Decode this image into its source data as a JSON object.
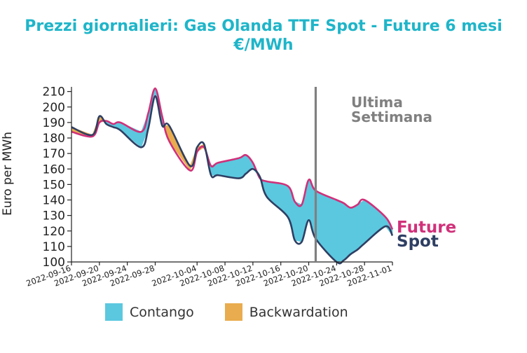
{
  "title_line1": "Prezzi giornalieri: Gas Olanda TTF Spot - Future 6 mesi",
  "title_line2": "€/MWh",
  "colors": {
    "title": "#1fb5c9",
    "contango": "#5bc8df",
    "backwardation": "#e9ac4e",
    "future": "#d0317a",
    "spot": "#2e3f63",
    "annotation": "#808080",
    "vline": "#808080"
  },
  "legend": {
    "contango": "Contango",
    "backwardation": "Backwardation"
  },
  "chart_data": {
    "type": "area",
    "xlabel": "",
    "ylabel": "Euro per MWh",
    "ylim": [
      100,
      213
    ],
    "yticks": [
      100,
      110,
      120,
      130,
      140,
      150,
      160,
      170,
      180,
      190,
      200,
      210
    ],
    "xlim": [
      "2022-09-16",
      "2022-11-01"
    ],
    "xticks": [
      "2022-09-16",
      "2022-09-20",
      "2022-09-24",
      "2022-09-28",
      "2022-10-04",
      "2022-10-08",
      "2022-10-12",
      "2022-10-16",
      "2022-10-20",
      "2022-10-24",
      "2022-10-28",
      "2022-11-01"
    ],
    "vline_date": "2022-10-21",
    "annotation": [
      "Ultima",
      "Settimana"
    ],
    "series": [
      {
        "name": "Future",
        "points": [
          [
            "2022-09-16",
            184
          ],
          [
            "2022-09-19",
            181
          ],
          [
            "2022-09-20",
            190
          ],
          [
            "2022-09-21",
            191
          ],
          [
            "2022-09-22",
            189
          ],
          [
            "2022-09-23",
            190
          ],
          [
            "2022-09-26",
            184
          ],
          [
            "2022-09-27",
            196
          ],
          [
            "2022-09-28",
            212
          ],
          [
            "2022-09-29",
            194
          ],
          [
            "2022-09-30",
            178
          ],
          [
            "2022-10-03",
            159
          ],
          [
            "2022-10-04",
            171
          ],
          [
            "2022-10-05",
            174
          ],
          [
            "2022-10-06",
            162
          ],
          [
            "2022-10-07",
            164
          ],
          [
            "2022-10-10",
            167
          ],
          [
            "2022-10-11",
            169
          ],
          [
            "2022-10-12",
            164
          ],
          [
            "2022-10-13",
            154
          ],
          [
            "2022-10-14",
            152
          ],
          [
            "2022-10-17",
            149
          ],
          [
            "2022-10-18",
            139
          ],
          [
            "2022-10-19",
            137
          ],
          [
            "2022-10-20",
            153
          ],
          [
            "2022-10-21",
            146
          ],
          [
            "2022-10-24",
            140
          ],
          [
            "2022-10-25",
            138
          ],
          [
            "2022-10-26",
            135
          ],
          [
            "2022-10-27",
            137
          ],
          [
            "2022-10-28",
            140
          ],
          [
            "2022-10-31",
            129
          ],
          [
            "2022-11-01",
            121
          ]
        ]
      },
      {
        "name": "Spot",
        "points": [
          [
            "2022-09-16",
            187
          ],
          [
            "2022-09-19",
            182
          ],
          [
            "2022-09-20",
            194
          ],
          [
            "2022-09-21",
            189
          ],
          [
            "2022-09-22",
            187
          ],
          [
            "2022-09-23",
            185
          ],
          [
            "2022-09-26",
            174
          ],
          [
            "2022-09-27",
            186
          ],
          [
            "2022-09-28",
            207
          ],
          [
            "2022-09-29",
            188
          ],
          [
            "2022-09-30",
            188
          ],
          [
            "2022-10-03",
            162
          ],
          [
            "2022-10-04",
            174
          ],
          [
            "2022-10-05",
            176
          ],
          [
            "2022-10-06",
            156
          ],
          [
            "2022-10-07",
            156
          ],
          [
            "2022-10-10",
            154
          ],
          [
            "2022-10-11",
            157
          ],
          [
            "2022-10-12",
            160
          ],
          [
            "2022-10-13",
            155
          ],
          [
            "2022-10-14",
            142
          ],
          [
            "2022-10-17",
            129
          ],
          [
            "2022-10-18",
            114
          ],
          [
            "2022-10-19",
            113
          ],
          [
            "2022-10-20",
            127
          ],
          [
            "2022-10-21",
            115
          ],
          [
            "2022-10-24",
            100
          ],
          [
            "2022-10-25",
            101
          ],
          [
            "2022-10-26",
            105
          ],
          [
            "2022-10-27",
            108
          ],
          [
            "2022-10-28",
            112
          ],
          [
            "2022-10-31",
            123
          ],
          [
            "2022-11-01",
            117
          ]
        ]
      }
    ],
    "line_labels": {
      "future": "Future",
      "spot": "Spot"
    }
  }
}
